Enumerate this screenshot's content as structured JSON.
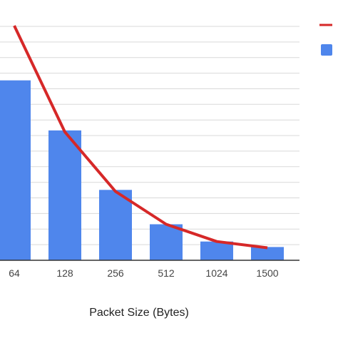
{
  "chart_data": {
    "type": "bar",
    "title": "",
    "xlabel": "Packet Size (Bytes)",
    "ylabel": "",
    "categories": [
      "64",
      "128",
      "256",
      "512",
      "1024",
      "1500"
    ],
    "ylim": [
      0,
      15.5
    ],
    "grid": true,
    "legend": "top-right",
    "series": [
      {
        "kind": "bar",
        "color": "#4f86ec",
        "values": [
          11.5,
          8.3,
          4.5,
          2.3,
          1.2,
          0.85
        ]
      },
      {
        "kind": "line",
        "color": "#d62828",
        "values": [
          15.0,
          8.2,
          4.4,
          2.3,
          1.2,
          0.8
        ]
      }
    ]
  }
}
